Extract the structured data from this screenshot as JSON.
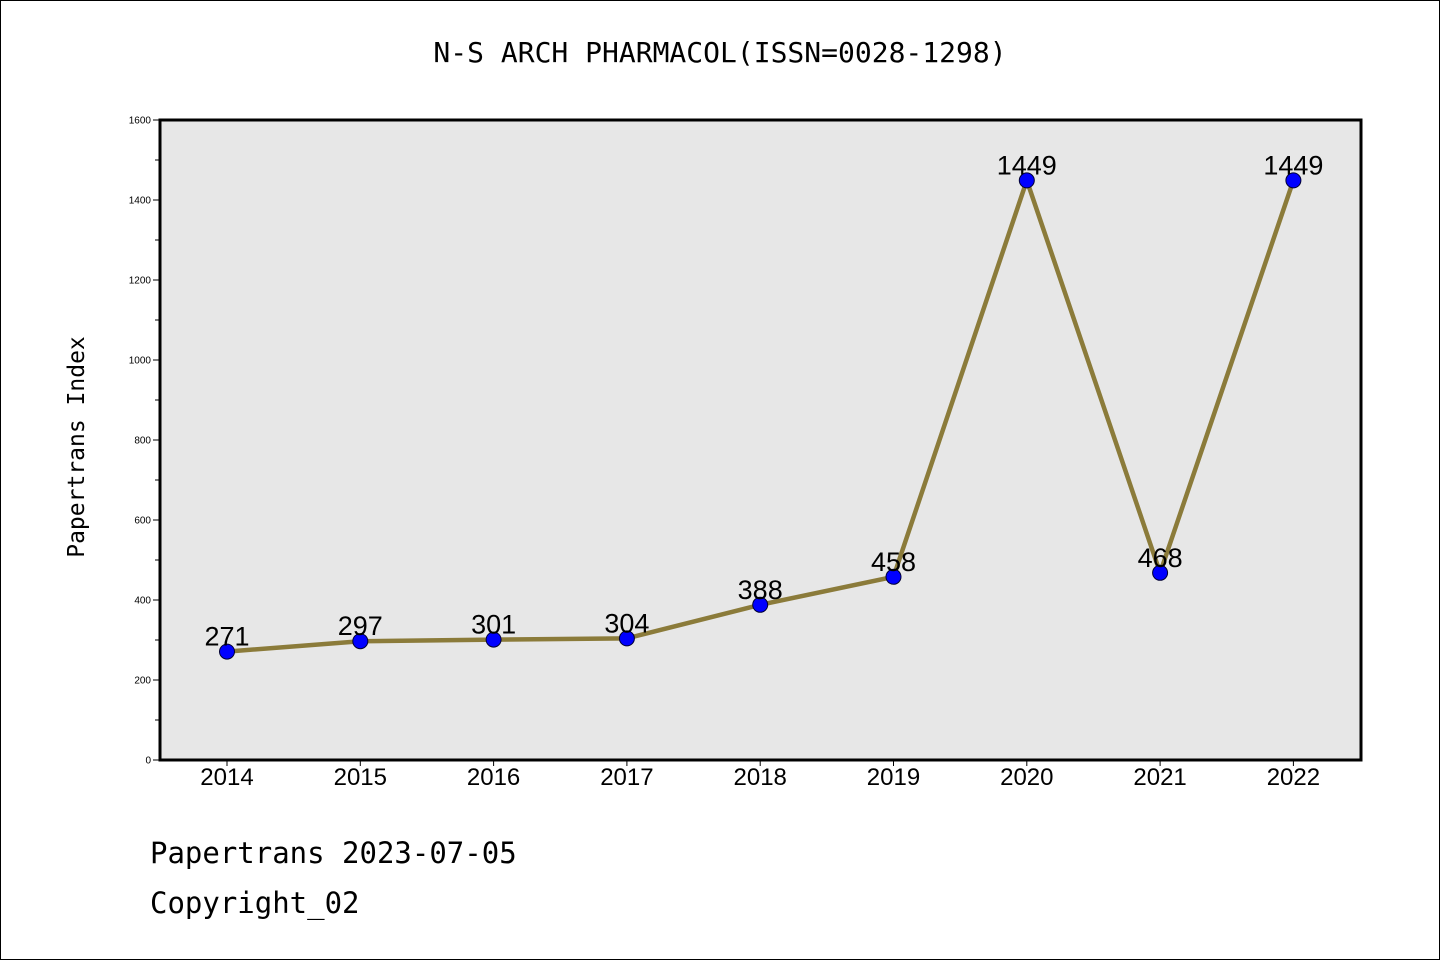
{
  "title": "N-S ARCH PHARMACOL(ISSN=0028-1298)",
  "footer": {
    "date_line": "Papertrans 2023-07-05",
    "copyright": "Copyright_02"
  },
  "chart_data": {
    "type": "line",
    "categories": [
      "2014",
      "2015",
      "2016",
      "2017",
      "2018",
      "2019",
      "2020",
      "2021",
      "2022"
    ],
    "values": [
      271,
      297,
      301,
      304,
      388,
      458,
      1449,
      468,
      1449
    ],
    "data_labels": [
      "271",
      "297",
      "301",
      "304",
      "388",
      "458",
      "1449",
      "468",
      "1449"
    ],
    "title": "N-S ARCH PHARMACOL(ISSN=0028-1298)",
    "xlabel": "",
    "ylabel": "Papertrans Index",
    "ylim": [
      0,
      1600
    ],
    "yticks": [
      0,
      200,
      400,
      600,
      800,
      1000,
      1200,
      1400,
      1600
    ],
    "ytick_labels": [
      "0",
      "200",
      "400",
      "600",
      "800",
      "1000",
      "1200",
      "1400",
      "1600"
    ],
    "grid": false,
    "legend": "none",
    "colors": {
      "line": "#8b7b3a",
      "marker": "#0000ff",
      "plot_background": "#e7e7e7"
    }
  }
}
